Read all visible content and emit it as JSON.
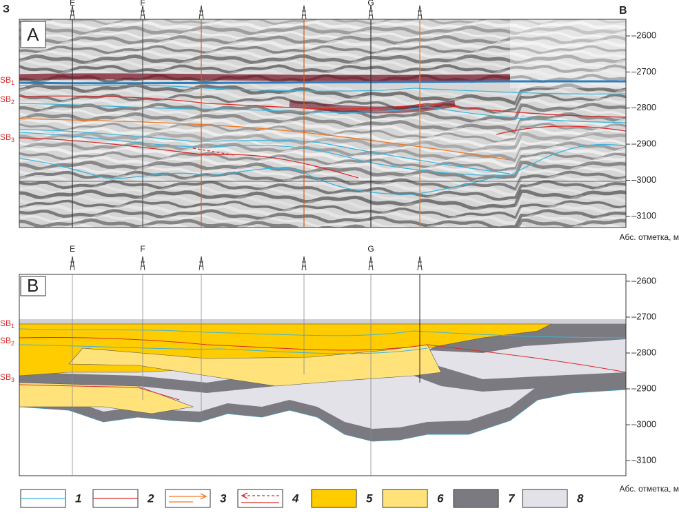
{
  "header": {
    "left": "З",
    "right": "В"
  },
  "wells": {
    "labels": [
      "E",
      "F",
      null,
      null,
      "G",
      null
    ]
  },
  "panels": [
    {
      "label": "А",
      "ylim": [
        -2554,
        -3131
      ],
      "yticks": [
        {
          "value": -2600,
          "label": "–2600"
        },
        {
          "value": -2700,
          "label": "–2700"
        },
        {
          "value": -2800,
          "label": "–2800"
        },
        {
          "value": -2900,
          "label": "–2900"
        },
        {
          "value": -3000,
          "label": "–3000"
        },
        {
          "value": -3100,
          "label": "–3100"
        }
      ],
      "axis_label": "Абс. отметка, м",
      "horizons": [
        {
          "name": "SB",
          "sub": "1"
        },
        {
          "name": "SB",
          "sub": "2"
        },
        {
          "name": "SB",
          "sub": "3"
        }
      ]
    },
    {
      "label": "В",
      "ylim": [
        -2581,
        -3142
      ],
      "yticks": [
        {
          "value": -2600,
          "label": "–2600"
        },
        {
          "value": -2700,
          "label": "–2700"
        },
        {
          "value": -2800,
          "label": "–2800"
        },
        {
          "value": -2900,
          "label": "–2900"
        },
        {
          "value": -3000,
          "label": "–3000"
        },
        {
          "value": -3100,
          "label": "–3100"
        }
      ],
      "axis_label": "Абс. отметка, м",
      "horizons": [
        {
          "name": "SB",
          "sub": "1"
        },
        {
          "name": "SB",
          "sub": "2"
        },
        {
          "name": "SB",
          "sub": "3"
        }
      ]
    }
  ],
  "legend": [
    {
      "label": "1",
      "kind": "line",
      "color": "#3cb4dc"
    },
    {
      "label": "2",
      "kind": "line",
      "color": "#d92b2b"
    },
    {
      "label": "3",
      "kind": "arrow",
      "color": "#f07820"
    },
    {
      "label": "4",
      "kind": "dashed-arrow",
      "color": "#d92b2b"
    },
    {
      "label": "5",
      "kind": "fill",
      "color": "#ffcc00"
    },
    {
      "label": "6",
      "kind": "fill",
      "color": "#ffe27a"
    },
    {
      "label": "7",
      "kind": "fill",
      "color": "#7a7a80"
    },
    {
      "label": "8",
      "kind": "fill",
      "color": "#e2e2e8"
    }
  ]
}
